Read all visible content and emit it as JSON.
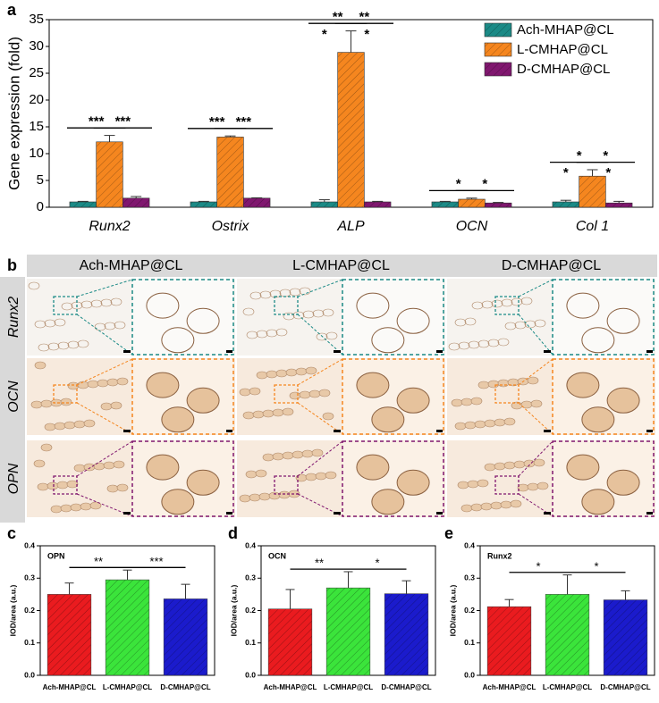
{
  "panel_labels": [
    "a",
    "b",
    "c",
    "d",
    "e"
  ],
  "chart_data": [
    {
      "type": "bar",
      "ylabel": "Gene expression (fold)",
      "categories": [
        "Runx2",
        "Ostrix",
        "ALP",
        "OCN",
        "Col 1"
      ],
      "ylim": [
        0,
        35
      ],
      "yticks": [
        0,
        5,
        10,
        15,
        20,
        25,
        30,
        35
      ],
      "legend": "upper right",
      "hatch": true,
      "series": [
        {
          "name": "Ach-MHAP@CL",
          "color": "#1b8a86",
          "values": [
            1,
            1,
            1,
            1,
            1
          ],
          "errors": [
            0.1,
            0.1,
            0.4,
            0.1,
            0.3
          ]
        },
        {
          "name": "L-CMHAP@CL",
          "color": "#f5861f",
          "values": [
            12.2,
            13.1,
            28.9,
            1.5,
            5.8
          ],
          "errors": [
            1.2,
            0.2,
            4,
            0.2,
            1.2
          ]
        },
        {
          "name": "D-CMHAP@CL",
          "color": "#80176f",
          "values": [
            1.7,
            1.7,
            1,
            0.8,
            0.8
          ],
          "errors": [
            0.3,
            0.05,
            0.1,
            0.1,
            0.3
          ]
        }
      ],
      "annotations": [
        {
          "text": "***",
          "category": 0,
          "from": 0,
          "to": 1
        },
        {
          "text": "***",
          "category": 0,
          "from": 1,
          "to": 2
        },
        {
          "text": "***",
          "category": 1,
          "from": 0,
          "to": 1
        },
        {
          "text": "***",
          "category": 1,
          "from": 1,
          "to": 2
        },
        {
          "text": "**",
          "category": 2,
          "from": 0,
          "to": 1
        },
        {
          "text": "**",
          "category": 2,
          "from": 1,
          "to": 2
        },
        {
          "text": "*",
          "category": 2,
          "series": 0
        },
        {
          "text": "*",
          "category": 2,
          "series": 1
        },
        {
          "text": "*",
          "category": 3,
          "from": 0,
          "to": 1
        },
        {
          "text": "*",
          "category": 3,
          "from": 1,
          "to": 2
        },
        {
          "text": "*",
          "category": 4,
          "from": 0,
          "to": 1
        },
        {
          "text": "*",
          "category": 4,
          "from": 1,
          "to": 2
        },
        {
          "text": "*",
          "category": 4,
          "series": 0
        },
        {
          "text": "*",
          "category": 4,
          "series": 1
        }
      ]
    },
    {
      "type": "bar",
      "title": "OPN",
      "ylabel": "IOD/area (a.u.)",
      "categories": [
        "Ach-MHAP@CL",
        "L-CMHAP@CL",
        "D-CMHAP@CL"
      ],
      "values": [
        0.25,
        0.295,
        0.236
      ],
      "errors": [
        0.035,
        0.03,
        0.045
      ],
      "colors": [
        "#ea1b1f",
        "#3be43b",
        "#1b1bcc"
      ],
      "ylim": [
        0,
        0.4
      ],
      "yticks": [
        {
          "value": 0,
          "label": "0.0"
        },
        0.1,
        0.2,
        0.3,
        0.4
      ],
      "hatch": true,
      "annotations": [
        {
          "text": "**",
          "from": 0,
          "to": 1
        },
        {
          "text": "***",
          "from": 1,
          "to": 2
        }
      ]
    },
    {
      "type": "bar",
      "title": "OCN",
      "ylabel": "IOD/area (a.u.)",
      "categories": [
        "Ach-MHAP@CL",
        "L-CMHAP@CL",
        "D-CMHAP@CL"
      ],
      "values": [
        0.205,
        0.27,
        0.252
      ],
      "errors": [
        0.06,
        0.05,
        0.04
      ],
      "colors": [
        "#ea1b1f",
        "#3be43b",
        "#1b1bcc"
      ],
      "ylim": [
        0,
        0.4
      ],
      "yticks": [
        {
          "value": 0,
          "label": "0.0"
        },
        0.1,
        0.2,
        0.3,
        0.4
      ],
      "hatch": true,
      "annotations": [
        {
          "text": "**",
          "from": 0,
          "to": 1
        },
        {
          "text": "*",
          "from": 1,
          "to": 2
        }
      ]
    },
    {
      "type": "bar",
      "title": "Runx2",
      "ylabel": "IOD/area (a.u.)",
      "categories": [
        "Ach-MHAP@CL",
        "L-CMHAP@CL",
        "D-CMHAP@CL"
      ],
      "values": [
        0.212,
        0.25,
        0.233
      ],
      "errors": [
        0.022,
        0.06,
        0.028
      ],
      "colors": [
        "#ea1b1f",
        "#3be43b",
        "#1b1bcc"
      ],
      "ylim": [
        0,
        0.4
      ],
      "yticks": [
        {
          "value": 0,
          "label": "0.0"
        },
        0.1,
        0.2,
        0.3,
        0.4
      ],
      "hatch": true,
      "annotations": [
        {
          "text": "*",
          "from": 0,
          "to": 1
        },
        {
          "text": "*",
          "from": 1,
          "to": 2
        }
      ]
    }
  ],
  "image_grid": {
    "columns": [
      "Ach-MHAP@CL",
      "L-CMHAP@CL",
      "D-CMHAP@CL"
    ],
    "rows": [
      "Runx2",
      "OCN",
      "OPN"
    ]
  }
}
